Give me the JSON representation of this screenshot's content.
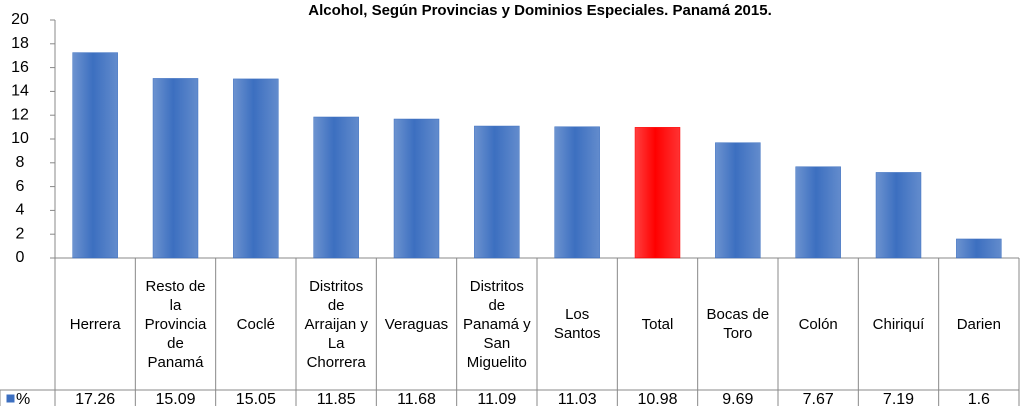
{
  "chart_data": {
    "type": "bar",
    "title": "Alcohol, Según Provincias y Dominios Especiales.  Panamá 2015.",
    "categories": [
      "Herrera",
      "Resto de la Provincia de Panamá",
      "Coclé",
      "Distritos de Arraijan y La Chorrera",
      "Veraguas",
      "Distritos de Panamá y San Miguelito",
      "Los Santos",
      "Total",
      "Bocas de Toro",
      "Colón",
      "Chiriquí",
      "Darien"
    ],
    "series": [
      {
        "name": "%",
        "color": "#3c6fc0",
        "values": [
          17.26,
          15.09,
          15.05,
          11.85,
          11.68,
          11.09,
          11.03,
          10.98,
          9.69,
          7.67,
          7.19,
          1.6
        ],
        "point_colors": [
          "#3c6fc0",
          "#3c6fc0",
          "#3c6fc0",
          "#3c6fc0",
          "#3c6fc0",
          "#3c6fc0",
          "#3c6fc0",
          "#ff0000",
          "#3c6fc0",
          "#3c6fc0",
          "#3c6fc0",
          "#3c6fc0"
        ]
      }
    ],
    "ylim": [
      0,
      20
    ],
    "yticks": [
      0,
      2,
      4,
      6,
      8,
      10,
      12,
      14,
      16,
      18,
      20
    ],
    "grid": false,
    "data_table": true
  }
}
